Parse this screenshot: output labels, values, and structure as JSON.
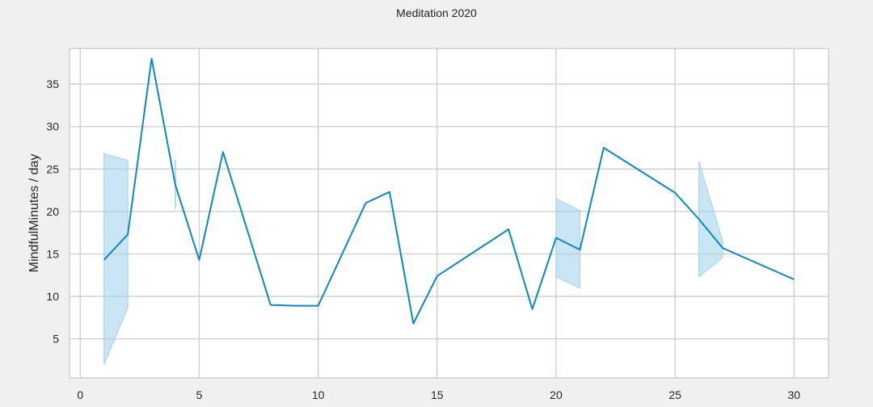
{
  "chart_data": {
    "type": "line",
    "title": "Meditation 2020",
    "xlabel": "",
    "ylabel": "MindfulMinutes / day",
    "xlim": [
      -0.45,
      31.45
    ],
    "ylim": [
      0.4,
      39.2
    ],
    "xticks": [
      0,
      5,
      10,
      15,
      20,
      25,
      30
    ],
    "yticks": [
      5,
      10,
      15,
      20,
      25,
      30,
      35
    ],
    "grid": true,
    "legend": "none",
    "colors": {
      "line": "#0a88c8",
      "band": "#9fd1ec",
      "background": "#f0f0f0",
      "plot": "#ffffff",
      "grid": "#cccccc"
    },
    "series": [
      {
        "x": [
          1,
          2,
          3,
          4,
          5,
          6,
          8,
          9,
          10,
          12,
          13,
          14,
          15,
          18,
          19,
          20,
          21,
          22,
          25,
          26,
          27,
          30
        ],
        "y": [
          14.3,
          17.3,
          38.0,
          23.1,
          14.3,
          27.0,
          9.0,
          8.9,
          8.9,
          21.0,
          22.3,
          6.8,
          12.4,
          17.9,
          8.5,
          16.9,
          15.5,
          27.5,
          22.2,
          19.1,
          15.7,
          12.0
        ]
      }
    ],
    "confidence_bands": [
      {
        "x": [
          1,
          2
        ],
        "lower": [
          2.0,
          8.7
        ],
        "upper": [
          26.8,
          26.0
        ]
      },
      {
        "x": [
          4
        ],
        "lower": [
          20.3
        ],
        "upper": [
          26.1
        ]
      },
      {
        "x": [
          20,
          21
        ],
        "lower": [
          12.3,
          11.0
        ],
        "upper": [
          21.5,
          20.1
        ]
      },
      {
        "x": [
          26,
          27
        ],
        "lower": [
          12.3,
          14.6
        ],
        "upper": [
          25.9,
          16.5
        ]
      }
    ]
  }
}
